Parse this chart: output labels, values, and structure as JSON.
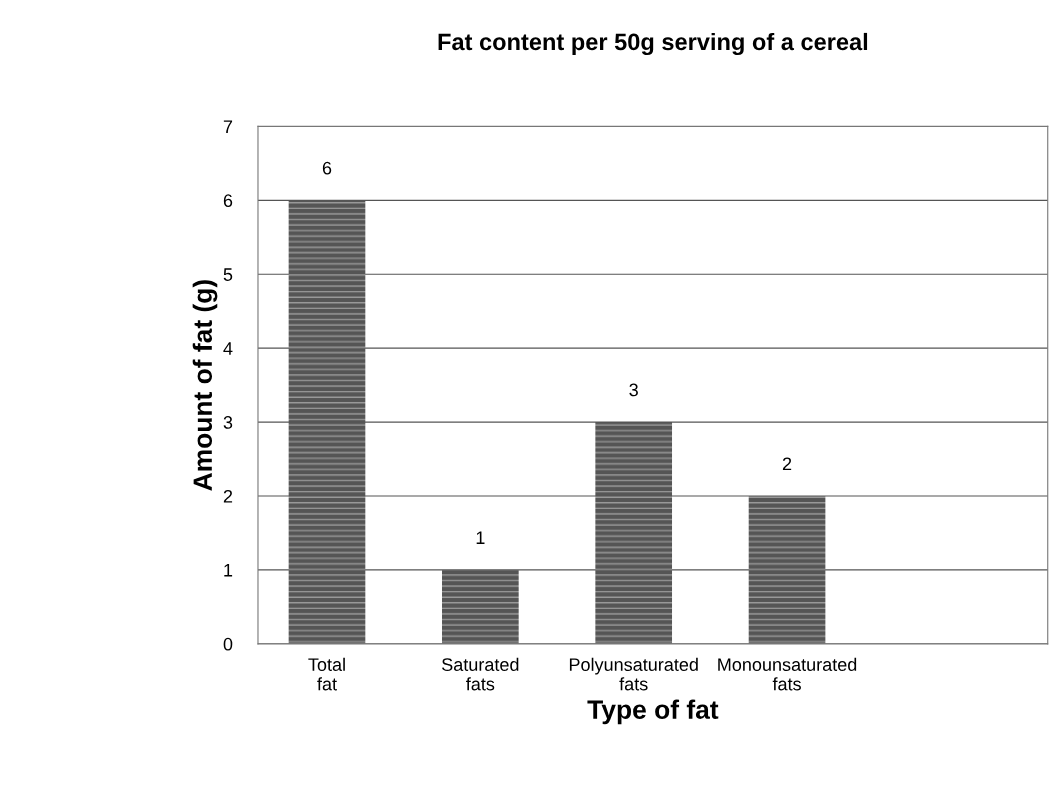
{
  "chart_data": {
    "type": "bar",
    "title": "Fat content per 50g serving of a cereal",
    "xlabel": "Type of fat",
    "ylabel": "Amount of fat (g)",
    "categories": [
      "Total\nfat",
      "Saturated\nfats",
      "Polyunsaturated\nfats",
      "Monounsaturated\nfats"
    ],
    "values": [
      6,
      1,
      3,
      2
    ],
    "color": "#555555",
    "ylim": [
      0,
      7
    ],
    "yticks": [
      0,
      1,
      2,
      3,
      4,
      5,
      6,
      7
    ],
    "grid": "y",
    "data_labels": true
  }
}
